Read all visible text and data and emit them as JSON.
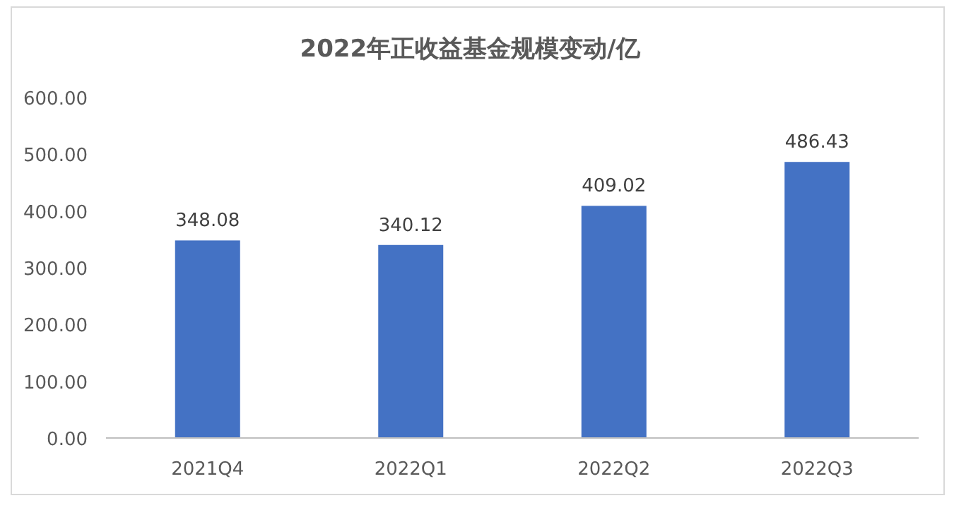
{
  "chart_data": {
    "type": "bar",
    "title": "2022年正收益基金规模变动/亿",
    "categories": [
      "2021Q4",
      "2022Q1",
      "2022Q2",
      "2022Q3"
    ],
    "values": [
      348.08,
      340.12,
      409.02,
      486.43
    ],
    "color": "#4472c4",
    "ylim": [
      0,
      600
    ],
    "yticks": [
      {
        "value": 0,
        "label": "0.00"
      },
      {
        "value": 100,
        "label": "100.00"
      },
      {
        "value": 200,
        "label": "200.00"
      },
      {
        "value": 300,
        "label": "300.00"
      },
      {
        "value": 400,
        "label": "400.00"
      },
      {
        "value": 500,
        "label": "500.00"
      },
      {
        "value": 600,
        "label": "600.00"
      }
    ],
    "data_labels": true,
    "grid": false
  }
}
